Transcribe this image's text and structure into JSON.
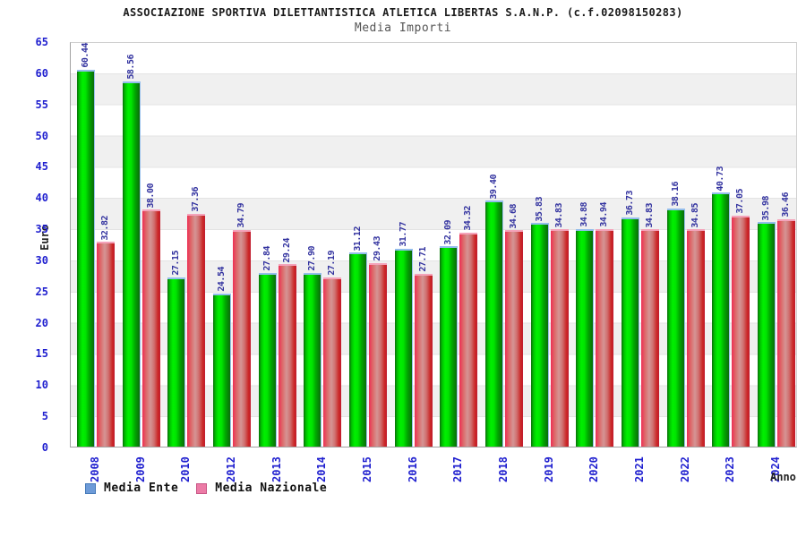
{
  "header": {
    "title": "ASSOCIAZIONE SPORTIVA DILETTANTISTICA ATLETICA LIBERTAS S.A.N.P. (c.f.02098150283)",
    "subtitle": "Media Importi"
  },
  "axes": {
    "y_label": "Euro",
    "x_label": "Anno",
    "y_ticks": [
      0,
      5,
      10,
      15,
      20,
      25,
      30,
      35,
      40,
      45,
      50,
      55,
      60,
      65
    ]
  },
  "legend": {
    "items": [
      {
        "label": "Media Ente",
        "swatch_fill": "#6d9bd8",
        "swatch_border": "#4579b8"
      },
      {
        "label": "Media Nazionale",
        "swatch_fill": "#ec7ba6",
        "swatch_border": "#c85585"
      }
    ]
  },
  "colors": {
    "bar_ente_main": "#00e600",
    "bar_ente_edge": "#0a6e0a",
    "bar_nazionale_main": "#d59595",
    "bar_nazionale_edge": "#cb2525",
    "bar_cap_ente": "#93bdec",
    "bar_cap_nazionale": "#f4a3ba",
    "tick_label": "#1f1fcf",
    "value_label": "#32329f",
    "band_gray": "#f0f0f0",
    "band_white": "#ffffff"
  },
  "chart_data": {
    "type": "bar",
    "title": "ASSOCIAZIONE SPORTIVA DILETTANTISTICA ATLETICA LIBERTAS S.A.N.P. (c.f.02098150283)",
    "subtitle": "Media Importi",
    "xlabel": "Anno",
    "ylabel": "Euro",
    "ylim": [
      0,
      65
    ],
    "y_tick_step": 5,
    "grid": "horizontal-bands-alternating",
    "legend_position": "bottom-left",
    "categories": [
      "2008",
      "2009",
      "2010",
      "2012",
      "2013",
      "2014",
      "2015",
      "2016",
      "2017",
      "2018",
      "2019",
      "2020",
      "2021",
      "2022",
      "2023",
      "2024"
    ],
    "series": [
      {
        "name": "Media Ente",
        "values": [
          60.44,
          58.56,
          27.15,
          24.54,
          27.84,
          27.9,
          31.12,
          31.77,
          32.09,
          39.4,
          35.83,
          34.88,
          36.73,
          38.16,
          40.73,
          35.98
        ],
        "value_labels": [
          "60.44",
          "58.56",
          "27.15",
          "24.54",
          "27.84",
          "27.90",
          "31.12",
          "31.77",
          "32.09",
          "39.40",
          "35.83",
          "34.88",
          "36.73",
          "38.16",
          "40.73",
          "35.98"
        ]
      },
      {
        "name": "Media Nazionale",
        "values": [
          32.82,
          38.0,
          37.36,
          34.79,
          29.24,
          27.19,
          29.43,
          27.71,
          34.32,
          34.68,
          34.83,
          34.94,
          34.83,
          34.85,
          37.05,
          36.46
        ],
        "value_labels": [
          "32.82",
          "38.00",
          "37.36",
          "34.79",
          "29.24",
          "27.19",
          "29.43",
          "27.71",
          "34.32",
          "34.68",
          "34.83",
          "34.94",
          "34.83",
          "34.85",
          "37.05",
          "36.46"
        ]
      }
    ]
  }
}
